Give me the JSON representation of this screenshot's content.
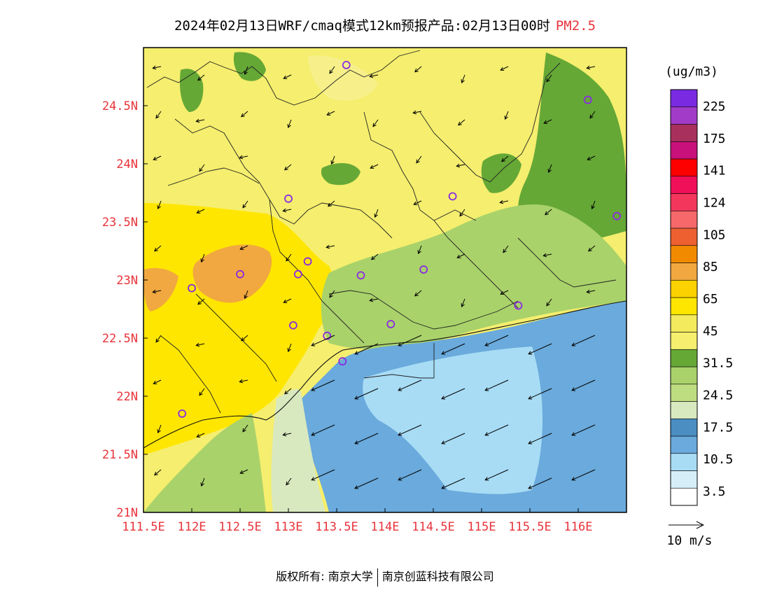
{
  "header": {
    "title": "2024年02月13日WRF/cmaq模式12km预报产品:02月13日00时",
    "pollutant": "PM2.5"
  },
  "map": {
    "x_ticks": [
      "111.5E",
      "112E",
      "112.5E",
      "113E",
      "113.5E",
      "114E",
      "114.5E",
      "115E",
      "115.5E",
      "116E"
    ],
    "y_ticks": [
      "24.5N",
      "24N",
      "23.5N",
      "23N",
      "22.5N",
      "22N",
      "21.5N",
      "21N"
    ],
    "x_tick_values": [
      111.5,
      112.0,
      112.5,
      113.0,
      113.5,
      114.0,
      114.5,
      115.0,
      115.5,
      116.0
    ],
    "y_tick_values": [
      24.5,
      24.0,
      23.5,
      23.0,
      22.5,
      22.0,
      21.5,
      21.0
    ],
    "lon_range": [
      111.5,
      116.5
    ],
    "lat_range": [
      21.0,
      25.0
    ],
    "colors": {
      "pm_3_10": "#a8dcf5",
      "pm_10_17": "#6aaadc",
      "pm_17_24": "#d9e9bf",
      "pm_24_31": "#a9d26a",
      "pm_31_45": "#65a836",
      "pm_45_65": "#f5ee6e",
      "pm_65_85": "#ffe600",
      "pm_85_105": "#f1a840",
      "station": "#8a2be2"
    },
    "stations": [
      {
        "lon": 113.6,
        "lat": 24.85
      },
      {
        "lon": 116.1,
        "lat": 24.55
      },
      {
        "lon": 113.0,
        "lat": 23.7
      },
      {
        "lon": 114.7,
        "lat": 23.72
      },
      {
        "lon": 116.4,
        "lat": 23.55
      },
      {
        "lon": 112.0,
        "lat": 22.93
      },
      {
        "lon": 112.5,
        "lat": 23.05
      },
      {
        "lon": 113.1,
        "lat": 23.05
      },
      {
        "lon": 113.2,
        "lat": 23.16
      },
      {
        "lon": 113.75,
        "lat": 23.04
      },
      {
        "lon": 114.4,
        "lat": 23.09
      },
      {
        "lon": 115.38,
        "lat": 22.78
      },
      {
        "lon": 113.05,
        "lat": 22.61
      },
      {
        "lon": 113.4,
        "lat": 22.52
      },
      {
        "lon": 114.06,
        "lat": 22.62
      },
      {
        "lon": 113.56,
        "lat": 22.3
      },
      {
        "lon": 111.9,
        "lat": 21.85
      }
    ]
  },
  "legend": {
    "unit": "(ug/m3)",
    "labels": [
      "225",
      "175",
      "141",
      "124",
      "105",
      "85",
      "65",
      "45",
      "31.5",
      "24.5",
      "17.5",
      "10.5",
      "3.5"
    ],
    "colors": [
      "#ffffff",
      "#d6eef8",
      "#a8dcf5",
      "#6aaadc",
      "#4a8ec2",
      "#d9e9bf",
      "#bedc80",
      "#a9d26a",
      "#65a836",
      "#f5ee6e",
      "#f3ea5e",
      "#ffe600",
      "#fcd200",
      "#f1a840",
      "#f28a00",
      "#ee6030",
      "#f6686a",
      "#f2365c",
      "#f0105a",
      "#ff0000",
      "#c8117b",
      "#a8305c",
      "#a23bc8",
      "#7a2be2"
    ],
    "wind_scale_label": "10 m/s"
  },
  "footer": {
    "copyright": "版权所有: 南京大学",
    "company": "南京创蓝科技有限公司"
  }
}
